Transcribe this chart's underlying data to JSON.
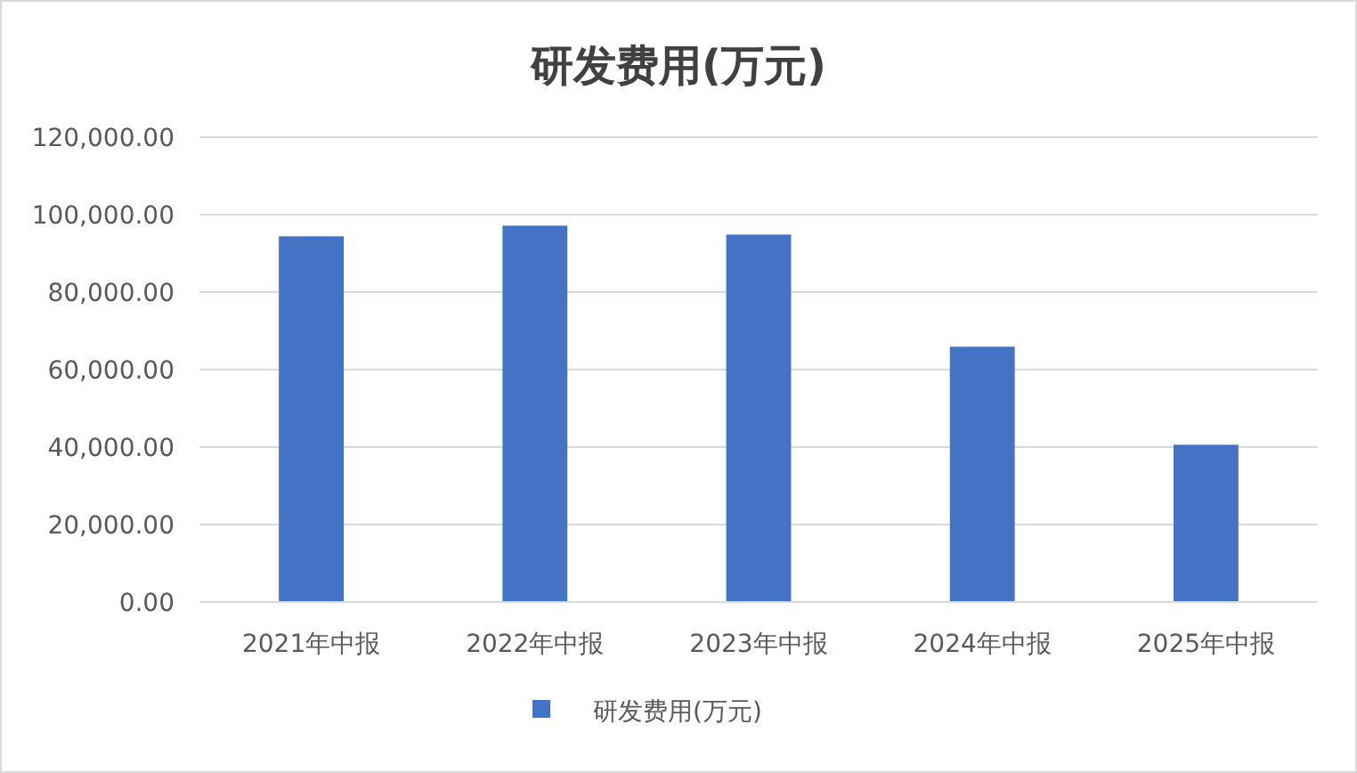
{
  "chart_data": {
    "type": "bar",
    "title": "研发费用(万元)",
    "categories": [
      "2021年中报",
      "2022年中报",
      "2023年中报",
      "2024年中报",
      "2025年中报"
    ],
    "series": [
      {
        "name": "研发费用(万元)",
        "color": "#4472c4",
        "values": [
          94400,
          97150,
          94850,
          65900,
          40600
        ]
      }
    ],
    "ylim": [
      0,
      120000
    ],
    "yticks": [
      {
        "value": 0,
        "label": "0.00"
      },
      {
        "value": 20000,
        "label": "20,000.00"
      },
      {
        "value": 40000,
        "label": "40,000.00"
      },
      {
        "value": 60000,
        "label": "60,000.00"
      },
      {
        "value": 80000,
        "label": "80,000.00"
      },
      {
        "value": 100000,
        "label": "100,000.00"
      },
      {
        "value": 120000,
        "label": "120,000.00"
      }
    ],
    "grid": "y",
    "legend": "bottom"
  }
}
